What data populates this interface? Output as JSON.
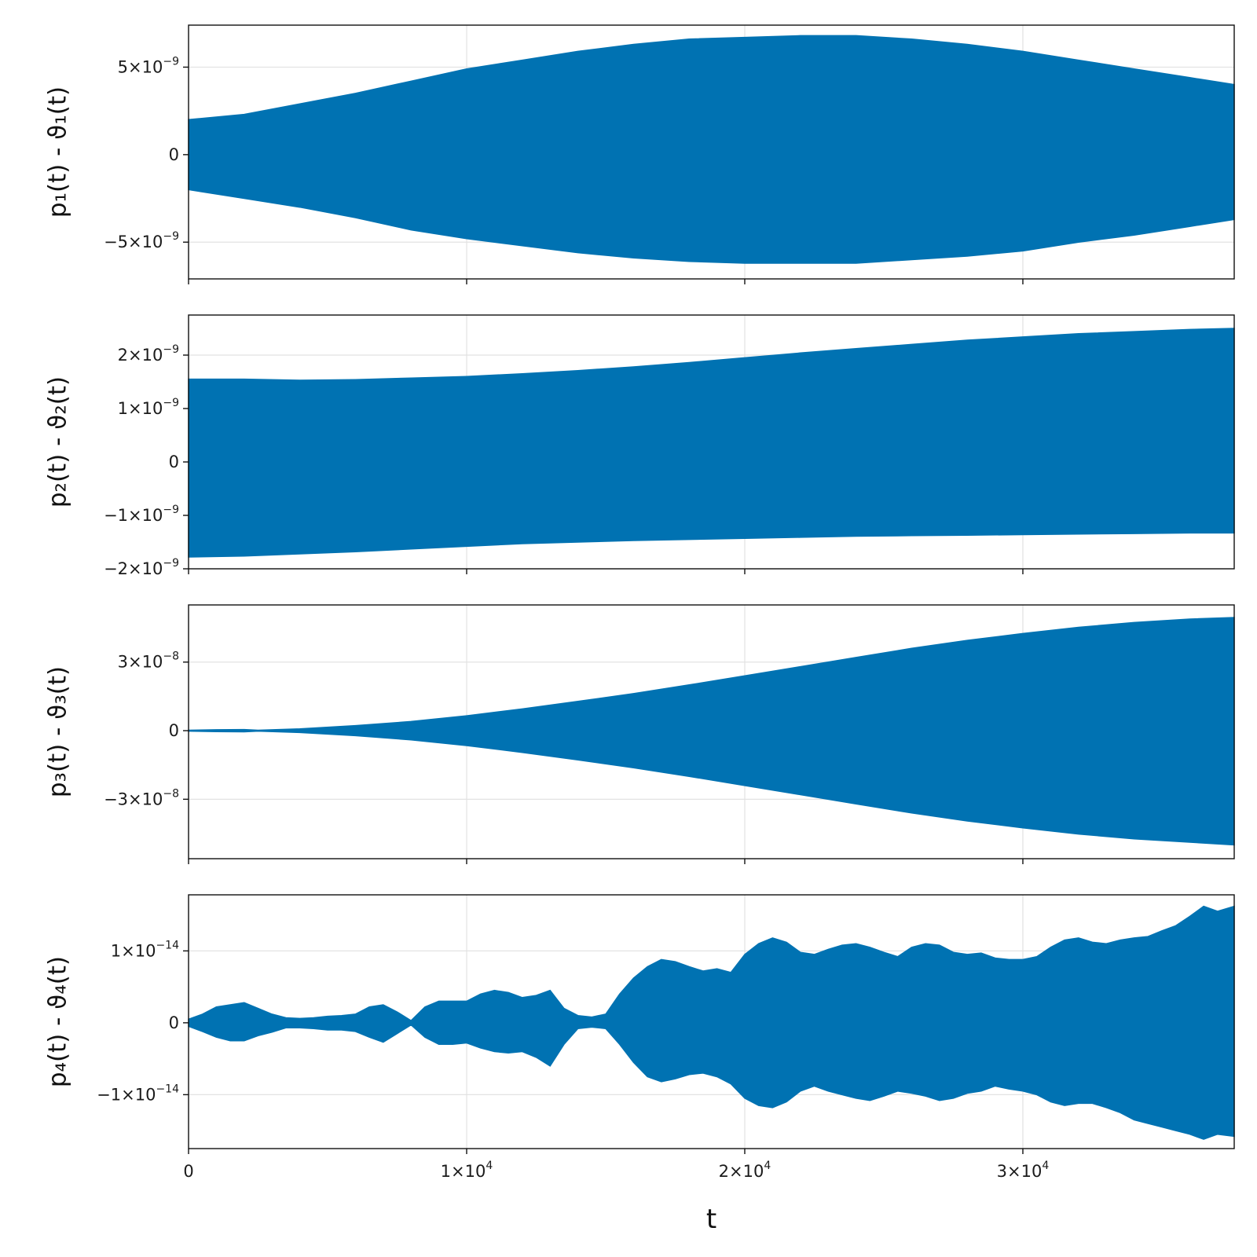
{
  "chart_data": [
    {
      "type": "area",
      "ylabel": "p₁(t) - ϑ₁(t)",
      "xlim": [
        0,
        37600
      ],
      "ylim": [
        -7.1e-09,
        7.4e-09
      ],
      "xticks": [
        {
          "value": 0,
          "label": ""
        },
        {
          "value": 10000,
          "label": ""
        },
        {
          "value": 20000,
          "label": ""
        },
        {
          "value": 30000,
          "label": ""
        }
      ],
      "yticks": [
        {
          "value": 5e-09,
          "label": "5×10",
          "exp": "−9"
        },
        {
          "value": 0,
          "label": "0",
          "exp": ""
        },
        {
          "value": -5e-09,
          "label": "−5×10",
          "exp": "−9"
        }
      ],
      "envelope": {
        "t": [
          0,
          2000,
          4000,
          6000,
          8000,
          10000,
          12000,
          14000,
          16000,
          18000,
          20000,
          22000,
          24000,
          26000,
          28000,
          30000,
          32000,
          34000,
          36000,
          37600
        ],
        "upper": [
          2e-09,
          2.3e-09,
          2.9e-09,
          3.5e-09,
          4.2e-09,
          4.9e-09,
          5.4e-09,
          5.9e-09,
          6.3e-09,
          6.6e-09,
          6.7e-09,
          6.8e-09,
          6.8e-09,
          6.6e-09,
          6.3e-09,
          5.9e-09,
          5.4e-09,
          4.9e-09,
          4.4e-09,
          4e-09
        ],
        "lower": [
          -2e-09,
          -2.5e-09,
          -3e-09,
          -3.6e-09,
          -4.3e-09,
          -4.8e-09,
          -5.2e-09,
          -5.6e-09,
          -5.9e-09,
          -6.1e-09,
          -6.2e-09,
          -6.2e-09,
          -6.2e-09,
          -6e-09,
          -5.8e-09,
          -5.5e-09,
          -5e-09,
          -4.6e-09,
          -4.1e-09,
          -3.7e-09
        ]
      },
      "color": "#0072b2"
    },
    {
      "type": "area",
      "ylabel": "p₂(t) - ϑ₂(t)",
      "xlim": [
        0,
        37600
      ],
      "ylim": [
        -2e-09,
        2.75e-09
      ],
      "xticks": [
        {
          "value": 0,
          "label": ""
        },
        {
          "value": 10000,
          "label": ""
        },
        {
          "value": 20000,
          "label": ""
        },
        {
          "value": 30000,
          "label": ""
        }
      ],
      "yticks": [
        {
          "value": 2e-09,
          "label": "2×10",
          "exp": "−9"
        },
        {
          "value": 1e-09,
          "label": "1×10",
          "exp": "−9"
        },
        {
          "value": 0,
          "label": "0",
          "exp": ""
        },
        {
          "value": -1e-09,
          "label": "−1×10",
          "exp": "−9"
        },
        {
          "value": -2e-09,
          "label": "−2×10",
          "exp": "−9"
        }
      ],
      "envelope": {
        "t": [
          0,
          2000,
          4000,
          6000,
          8000,
          10000,
          12000,
          14000,
          16000,
          18000,
          20000,
          22000,
          24000,
          26000,
          28000,
          30000,
          32000,
          34000,
          36000,
          37600
        ],
        "upper": [
          1.55e-09,
          1.55e-09,
          1.53e-09,
          1.54e-09,
          1.57e-09,
          1.6e-09,
          1.65e-09,
          1.71e-09,
          1.78e-09,
          1.86e-09,
          1.95e-09,
          2.04e-09,
          2.12e-09,
          2.2e-09,
          2.28e-09,
          2.34e-09,
          2.4e-09,
          2.44e-09,
          2.48e-09,
          2.5e-09
        ],
        "lower": [
          -1.78e-09,
          -1.76e-09,
          -1.72e-09,
          -1.68e-09,
          -1.63e-09,
          -1.58e-09,
          -1.53e-09,
          -1.5e-09,
          -1.47e-09,
          -1.45e-09,
          -1.43e-09,
          -1.41e-09,
          -1.39e-09,
          -1.38e-09,
          -1.37e-09,
          -1.36e-09,
          -1.35e-09,
          -1.34e-09,
          -1.33e-09,
          -1.33e-09
        ]
      },
      "color": "#0072b2"
    },
    {
      "type": "area",
      "ylabel": "p₃(t) - ϑ₃(t)",
      "xlim": [
        0,
        37600
      ],
      "ylim": [
        -5.6e-08,
        5.5e-08
      ],
      "xticks": [
        {
          "value": 0,
          "label": ""
        },
        {
          "value": 10000,
          "label": ""
        },
        {
          "value": 20000,
          "label": ""
        },
        {
          "value": 30000,
          "label": ""
        }
      ],
      "yticks": [
        {
          "value": 3e-08,
          "label": "3×10",
          "exp": "−8"
        },
        {
          "value": 0,
          "label": "0",
          "exp": ""
        },
        {
          "value": -3e-08,
          "label": "−3×10",
          "exp": "−8"
        }
      ],
      "envelope": {
        "t": [
          0,
          1000,
          2000,
          2500,
          4000,
          6000,
          8000,
          10000,
          12000,
          14000,
          16000,
          18000,
          20000,
          22000,
          24000,
          26000,
          28000,
          30000,
          32000,
          34000,
          36000,
          37600
        ],
        "upper": [
          2e-10,
          4e-10,
          5e-10,
          2e-10,
          8e-10,
          2.2e-09,
          4e-09,
          6.5e-09,
          9.5e-09,
          1.28e-08,
          1.62e-08,
          2e-08,
          2.4e-08,
          2.8e-08,
          3.2e-08,
          3.6e-08,
          3.95e-08,
          4.25e-08,
          4.52e-08,
          4.73e-08,
          4.88e-08,
          4.95e-08
        ],
        "lower": [
          -2e-10,
          -4e-10,
          -5e-10,
          -2e-10,
          -8e-10,
          -2.2e-09,
          -4e-09,
          -6.5e-09,
          -9.5e-09,
          -1.28e-08,
          -1.62e-08,
          -2e-08,
          -2.4e-08,
          -2.8e-08,
          -3.2e-08,
          -3.6e-08,
          -3.95e-08,
          -4.25e-08,
          -4.52e-08,
          -4.73e-08,
          -4.88e-08,
          -5e-08
        ]
      },
      "color": "#0072b2"
    },
    {
      "type": "area",
      "ylabel": "p₄(t) - ϑ₄(t)",
      "xlabel": "t",
      "xlim": [
        0,
        37600
      ],
      "ylim": [
        -1.75e-14,
        1.78e-14
      ],
      "xticks": [
        {
          "value": 0,
          "label": "0",
          "exp": ""
        },
        {
          "value": 10000,
          "label": "1×10",
          "exp": "4"
        },
        {
          "value": 20000,
          "label": "2×10",
          "exp": "4"
        },
        {
          "value": 30000,
          "label": "3×10",
          "exp": "4"
        }
      ],
      "yticks": [
        {
          "value": 1e-14,
          "label": "1×10",
          "exp": "−14"
        },
        {
          "value": 0,
          "label": "0",
          "exp": ""
        },
        {
          "value": -1e-14,
          "label": "−1×10",
          "exp": "−14"
        }
      ],
      "envelope": {
        "t": [
          0,
          500,
          1000,
          1500,
          2000,
          2500,
          3000,
          3500,
          4000,
          4500,
          5000,
          5500,
          6000,
          6500,
          7000,
          7500,
          8000,
          8500,
          9000,
          9500,
          10000,
          10500,
          11000,
          11500,
          12000,
          12500,
          13000,
          13500,
          14000,
          14500,
          15000,
          15500,
          16000,
          16500,
          17000,
          17500,
          18000,
          18500,
          19000,
          19500,
          20000,
          20500,
          21000,
          21500,
          22000,
          22500,
          23000,
          23500,
          24000,
          24500,
          25000,
          25500,
          26000,
          26500,
          27000,
          27500,
          28000,
          28500,
          29000,
          29500,
          30000,
          30500,
          31000,
          31500,
          32000,
          32500,
          33000,
          33500,
          34000,
          34500,
          35000,
          35500,
          36000,
          36500,
          37000,
          37600
        ],
        "upper": [
          5e-16,
          1.2e-15,
          2.2e-15,
          2.5e-15,
          2.8e-15,
          2e-15,
          1.2e-15,
          7e-16,
          6e-16,
          7e-16,
          9e-16,
          1e-15,
          1.2e-15,
          2.2e-15,
          2.5e-15,
          1.5e-15,
          3e-16,
          2.2e-15,
          3e-15,
          3e-15,
          3e-15,
          4e-15,
          4.5e-15,
          4.2e-15,
          3.5e-15,
          3.8e-15,
          4.5e-15,
          2e-15,
          1e-15,
          8e-16,
          1.2e-15,
          4e-15,
          6.2e-15,
          7.8e-15,
          8.8e-15,
          8.5e-15,
          7.8e-15,
          7.2e-15,
          7.5e-15,
          7e-15,
          9.5e-15,
          1.1e-14,
          1.18e-14,
          1.12e-14,
          9.8e-15,
          9.5e-15,
          1.02e-14,
          1.08e-14,
          1.1e-14,
          1.05e-14,
          9.8e-15,
          9.2e-15,
          1.05e-14,
          1.1e-14,
          1.08e-14,
          9.8e-15,
          9.5e-15,
          9.7e-15,
          9e-15,
          8.8e-15,
          8.8e-15,
          9.2e-15,
          1.05e-14,
          1.15e-14,
          1.18e-14,
          1.12e-14,
          1.1e-14,
          1.15e-14,
          1.18e-14,
          1.2e-14,
          1.28e-14,
          1.35e-14,
          1.48e-14,
          1.62e-14,
          1.55e-14,
          1.62e-14
        ],
        "lower": [
          -5e-16,
          -1.2e-15,
          -2e-15,
          -2.5e-15,
          -2.5e-15,
          -1.8e-15,
          -1.3e-15,
          -7e-16,
          -7e-16,
          -8e-16,
          -1e-15,
          -1e-15,
          -1.2e-15,
          -2e-15,
          -2.7e-15,
          -1.5e-15,
          -3e-16,
          -2e-15,
          -3e-15,
          -3e-15,
          -2.8e-15,
          -3.5e-15,
          -4e-15,
          -4.2e-15,
          -4e-15,
          -4.8e-15,
          -6e-15,
          -3e-15,
          -8e-16,
          -6e-16,
          -8e-16,
          -3e-15,
          -5.5e-15,
          -7.5e-15,
          -8.2e-15,
          -7.8e-15,
          -7.2e-15,
          -7e-15,
          -7.5e-15,
          -8.5e-15,
          -1.05e-14,
          -1.15e-14,
          -1.18e-14,
          -1.1e-14,
          -9.5e-15,
          -8.8e-15,
          -9.5e-15,
          -1e-14,
          -1.05e-14,
          -1.08e-14,
          -1.02e-14,
          -9.5e-15,
          -9.8e-15,
          -1.02e-14,
          -1.08e-14,
          -1.05e-14,
          -9.8e-15,
          -9.5e-15,
          -8.8e-15,
          -9.2e-15,
          -9.5e-15,
          -1e-14,
          -1.1e-14,
          -1.15e-14,
          -1.12e-14,
          -1.12e-14,
          -1.18e-14,
          -1.25e-14,
          -1.35e-14,
          -1.4e-14,
          -1.45e-14,
          -1.5e-14,
          -1.55e-14,
          -1.62e-14,
          -1.55e-14,
          -1.58e-14
        ]
      },
      "color": "#0072b2"
    }
  ]
}
